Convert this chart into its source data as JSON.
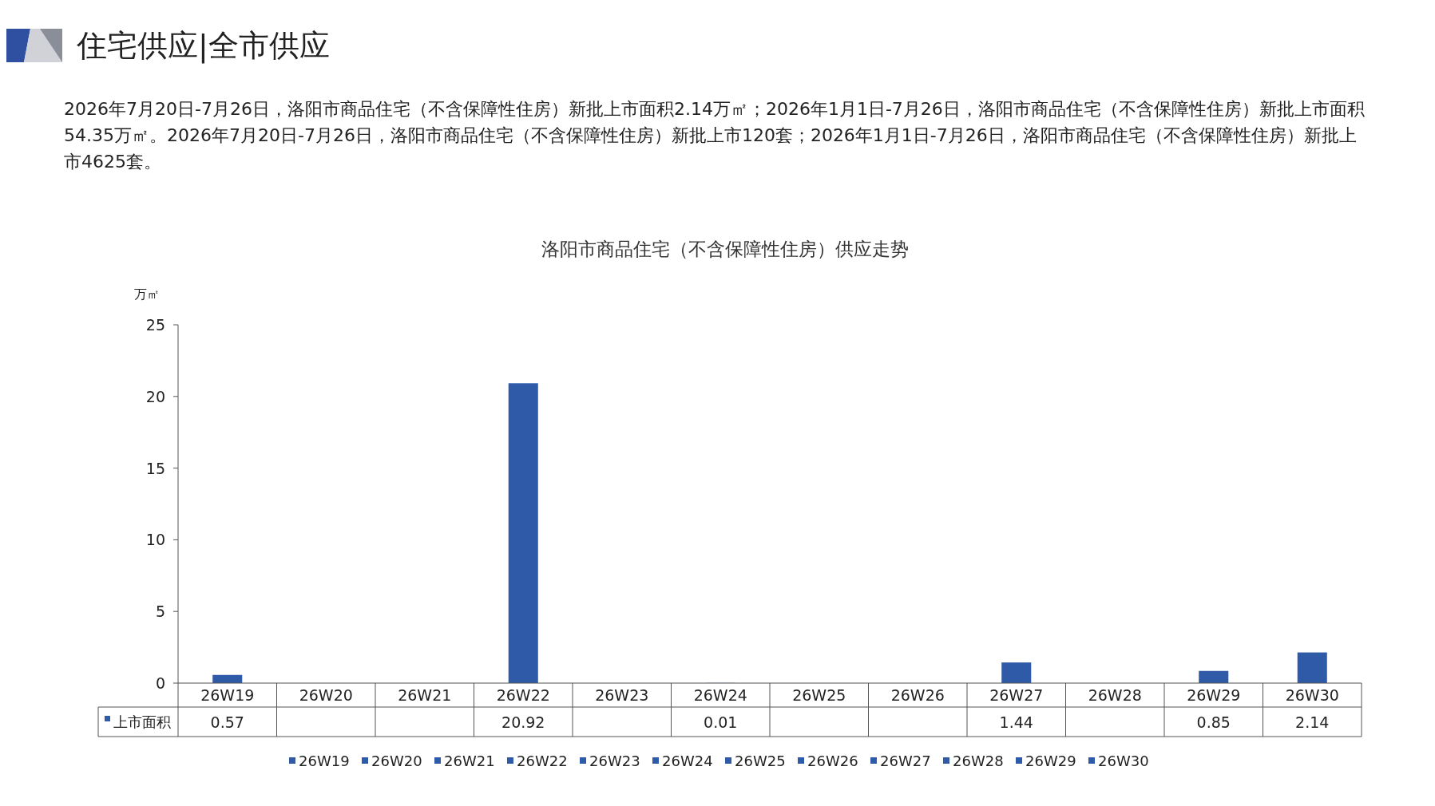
{
  "chart_data": {
    "type": "bar",
    "title": "洛阳市商品住宅（不含保障性住房）供应走势",
    "ylabel": "万㎡",
    "annotations": [
      "住宅供应|全市供应",
      "2026年7月20日-7月26日，洛阳市商品住宅（不含保障性住房）新批上市面积2.14万㎡；2026年1月1日-7月26日，洛阳市商品住宅（不含保障性住房）新批上市面积54.35万㎡。2026年7月20日-7月26日，洛阳市商品住宅（不含保障性住房）新批上市120套；2026年1月1日-7月26日，洛阳市商品住宅（不含保障性住房）新批上市4625套。"
    ],
    "categories": [
      "26W19",
      "26W20",
      "26W21",
      "26W22",
      "26W23",
      "26W24",
      "26W25",
      "26W26",
      "26W27",
      "26W28",
      "26W29",
      "26W30"
    ],
    "series": [
      {
        "name": "上市面积",
        "color": "#2f5aa8",
        "values": [
          0.57,
          null,
          null,
          20.92,
          null,
          0.01,
          null,
          null,
          1.44,
          null,
          0.85,
          2.14
        ]
      }
    ],
    "ylim": [
      0,
      25
    ],
    "yticks": [
      0,
      5,
      10,
      15,
      20,
      25
    ],
    "data_labels": true,
    "legend": "bottom"
  }
}
